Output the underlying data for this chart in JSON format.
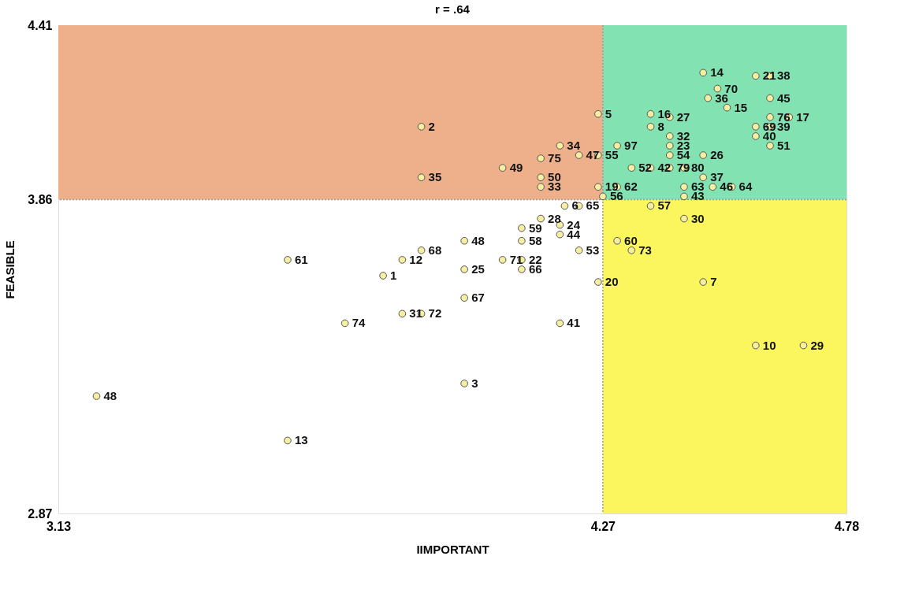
{
  "chart_data": {
    "type": "scatter",
    "title": "r = .64",
    "xlabel": "IIMPORTANT",
    "ylabel": "FEASIBLE",
    "xlim": [
      3.13,
      4.78
    ],
    "ylim": [
      2.87,
      4.41
    ],
    "xticks": [
      3.13,
      4.27,
      4.78
    ],
    "yticks": [
      2.87,
      3.86,
      4.41
    ],
    "marker": "circle",
    "ref_lines": [
      {
        "axis": "x",
        "value": 4.27,
        "color": "#999999",
        "line_style": "dotted"
      },
      {
        "axis": "y",
        "value": 3.86,
        "color": "#999999",
        "line_style": "dotted"
      }
    ],
    "bands": [
      {
        "axis": "y",
        "from": 3.86,
        "to": 4.41,
        "color": "#eeb08a"
      },
      {
        "axis": "x",
        "from": 4.27,
        "to": 4.78,
        "color": "#fbf65e"
      },
      {
        "axis": "x",
        "from": 4.27,
        "to": 4.78,
        "color": "#82e2b2"
      }
    ],
    "series": [
      {
        "color": "#f6efa2",
        "x": [
          4.48,
          4.59,
          4.62,
          4.51,
          4.49,
          4.62,
          4.53,
          4.26,
          4.37,
          4.41,
          4.62,
          4.66,
          4.37,
          4.59,
          4.62,
          4.59,
          4.41,
          4.18,
          4.3,
          4.41,
          4.62,
          4.14,
          4.22,
          4.26,
          4.41,
          4.48,
          4.33,
          4.37,
          4.41,
          4.44,
          4.06,
          4.48,
          4.14,
          3.89,
          3.89,
          4.14,
          4.26,
          4.3,
          4.44,
          4.5,
          4.54,
          4.44,
          4.27,
          4.19,
          4.22,
          4.37,
          4.14,
          4.44,
          4.1,
          4.18,
          4.18,
          3.98,
          4.1,
          4.3,
          3.89,
          4.22,
          4.33,
          3.85,
          3.61,
          4.06,
          4.1,
          3.98,
          4.1,
          3.81,
          4.26,
          4.48,
          3.98,
          3.85,
          3.89,
          3.73,
          4.18,
          4.59,
          4.69,
          3.98,
          3.21,
          3.61
        ],
        "values": [
          4.26,
          4.25,
          4.25,
          4.21,
          4.18,
          4.18,
          4.15,
          4.13,
          4.13,
          4.12,
          4.12,
          4.12,
          4.09,
          4.09,
          4.09,
          4.06,
          4.06,
          4.03,
          4.03,
          4.03,
          4.03,
          3.99,
          4.0,
          4.0,
          4.0,
          4.0,
          3.96,
          3.96,
          3.96,
          3.96,
          3.96,
          3.93,
          3.93,
          3.93,
          4.09,
          3.9,
          3.9,
          3.9,
          3.9,
          3.9,
          3.9,
          3.87,
          3.87,
          3.84,
          3.84,
          3.84,
          3.8,
          3.8,
          3.77,
          3.78,
          3.75,
          3.73,
          3.73,
          3.73,
          3.7,
          3.7,
          3.7,
          3.67,
          3.67,
          3.67,
          3.67,
          3.64,
          3.64,
          3.62,
          3.6,
          3.6,
          3.55,
          3.5,
          3.5,
          3.47,
          3.47,
          3.4,
          3.4,
          3.28,
          3.24,
          3.1
        ]
      }
    ],
    "annotations": [
      {
        "text": "14",
        "x": 4.48,
        "y": 4.26
      },
      {
        "text": "21",
        "x": 4.59,
        "y": 4.25
      },
      {
        "text": "38",
        "x": 4.62,
        "y": 4.25
      },
      {
        "text": "70",
        "x": 4.51,
        "y": 4.21
      },
      {
        "text": "36",
        "x": 4.49,
        "y": 4.18
      },
      {
        "text": "45",
        "x": 4.62,
        "y": 4.18
      },
      {
        "text": "15",
        "x": 4.53,
        "y": 4.15
      },
      {
        "text": "5",
        "x": 4.26,
        "y": 4.13
      },
      {
        "text": "16",
        "x": 4.37,
        "y": 4.13
      },
      {
        "text": "27",
        "x": 4.41,
        "y": 4.12
      },
      {
        "text": "76",
        "x": 4.62,
        "y": 4.12
      },
      {
        "text": "17",
        "x": 4.66,
        "y": 4.12
      },
      {
        "text": "8",
        "x": 4.37,
        "y": 4.09
      },
      {
        "text": "69",
        "x": 4.59,
        "y": 4.09
      },
      {
        "text": "39",
        "x": 4.62,
        "y": 4.09
      },
      {
        "text": "40",
        "x": 4.59,
        "y": 4.06
      },
      {
        "text": "32",
        "x": 4.41,
        "y": 4.06
      },
      {
        "text": "34",
        "x": 4.18,
        "y": 4.03
      },
      {
        "text": "97",
        "x": 4.3,
        "y": 4.03
      },
      {
        "text": "23",
        "x": 4.41,
        "y": 4.03
      },
      {
        "text": "51",
        "x": 4.62,
        "y": 4.03
      },
      {
        "text": "75",
        "x": 4.14,
        "y": 3.99
      },
      {
        "text": "47",
        "x": 4.22,
        "y": 4.0
      },
      {
        "text": "55",
        "x": 4.26,
        "y": 4.0
      },
      {
        "text": "54",
        "x": 4.41,
        "y": 4.0
      },
      {
        "text": "26",
        "x": 4.48,
        "y": 4.0
      },
      {
        "text": "52",
        "x": 4.33,
        "y": 3.96
      },
      {
        "text": "42",
        "x": 4.37,
        "y": 3.96
      },
      {
        "text": "79",
        "x": 4.41,
        "y": 3.96
      },
      {
        "text": "80",
        "x": 4.44,
        "y": 3.96
      },
      {
        "text": "49",
        "x": 4.06,
        "y": 3.96
      },
      {
        "text": "37",
        "x": 4.48,
        "y": 3.93
      },
      {
        "text": "50",
        "x": 4.14,
        "y": 3.93
      },
      {
        "text": "35",
        "x": 3.89,
        "y": 3.93
      },
      {
        "text": "2",
        "x": 3.89,
        "y": 4.09
      },
      {
        "text": "33",
        "x": 4.14,
        "y": 3.9
      },
      {
        "text": "19",
        "x": 4.26,
        "y": 3.9
      },
      {
        "text": "62",
        "x": 4.3,
        "y": 3.9
      },
      {
        "text": "63",
        "x": 4.44,
        "y": 3.9
      },
      {
        "text": "46",
        "x": 4.5,
        "y": 3.9
      },
      {
        "text": "64",
        "x": 4.54,
        "y": 3.9
      },
      {
        "text": "43",
        "x": 4.44,
        "y": 3.87
      },
      {
        "text": "56",
        "x": 4.27,
        "y": 3.87
      },
      {
        "text": "6",
        "x": 4.19,
        "y": 3.84
      },
      {
        "text": "65",
        "x": 4.22,
        "y": 3.84
      },
      {
        "text": "57",
        "x": 4.37,
        "y": 3.84
      },
      {
        "text": "28",
        "x": 4.14,
        "y": 3.8
      },
      {
        "text": "30",
        "x": 4.44,
        "y": 3.8
      },
      {
        "text": "59",
        "x": 4.1,
        "y": 3.77
      },
      {
        "text": "24",
        "x": 4.18,
        "y": 3.78
      },
      {
        "text": "44",
        "x": 4.18,
        "y": 3.75
      },
      {
        "text": "48",
        "x": 3.98,
        "y": 3.73
      },
      {
        "text": "58",
        "x": 4.1,
        "y": 3.73
      },
      {
        "text": "60",
        "x": 4.3,
        "y": 3.73
      },
      {
        "text": "68",
        "x": 3.89,
        "y": 3.7
      },
      {
        "text": "53",
        "x": 4.22,
        "y": 3.7
      },
      {
        "text": "73",
        "x": 4.33,
        "y": 3.7
      },
      {
        "text": "12",
        "x": 3.85,
        "y": 3.67
      },
      {
        "text": "61",
        "x": 3.61,
        "y": 3.67
      },
      {
        "text": "71",
        "x": 4.06,
        "y": 3.67
      },
      {
        "text": "22",
        "x": 4.1,
        "y": 3.67
      },
      {
        "text": "25",
        "x": 3.98,
        "y": 3.64
      },
      {
        "text": "66",
        "x": 4.1,
        "y": 3.64
      },
      {
        "text": "1",
        "x": 3.81,
        "y": 3.62
      },
      {
        "text": "20",
        "x": 4.26,
        "y": 3.6
      },
      {
        "text": "7",
        "x": 4.48,
        "y": 3.6
      },
      {
        "text": "67",
        "x": 3.98,
        "y": 3.55
      },
      {
        "text": "31",
        "x": 3.85,
        "y": 3.5
      },
      {
        "text": "72",
        "x": 3.89,
        "y": 3.5
      },
      {
        "text": "74",
        "x": 3.73,
        "y": 3.47
      },
      {
        "text": "41",
        "x": 4.18,
        "y": 3.47
      },
      {
        "text": "10",
        "x": 4.59,
        "y": 3.4
      },
      {
        "text": "29",
        "x": 4.69,
        "y": 3.4
      },
      {
        "text": "3",
        "x": 3.98,
        "y": 3.28
      },
      {
        "text": "48",
        "x": 3.21,
        "y": 3.24
      },
      {
        "text": "13",
        "x": 3.61,
        "y": 3.1
      }
    ]
  }
}
